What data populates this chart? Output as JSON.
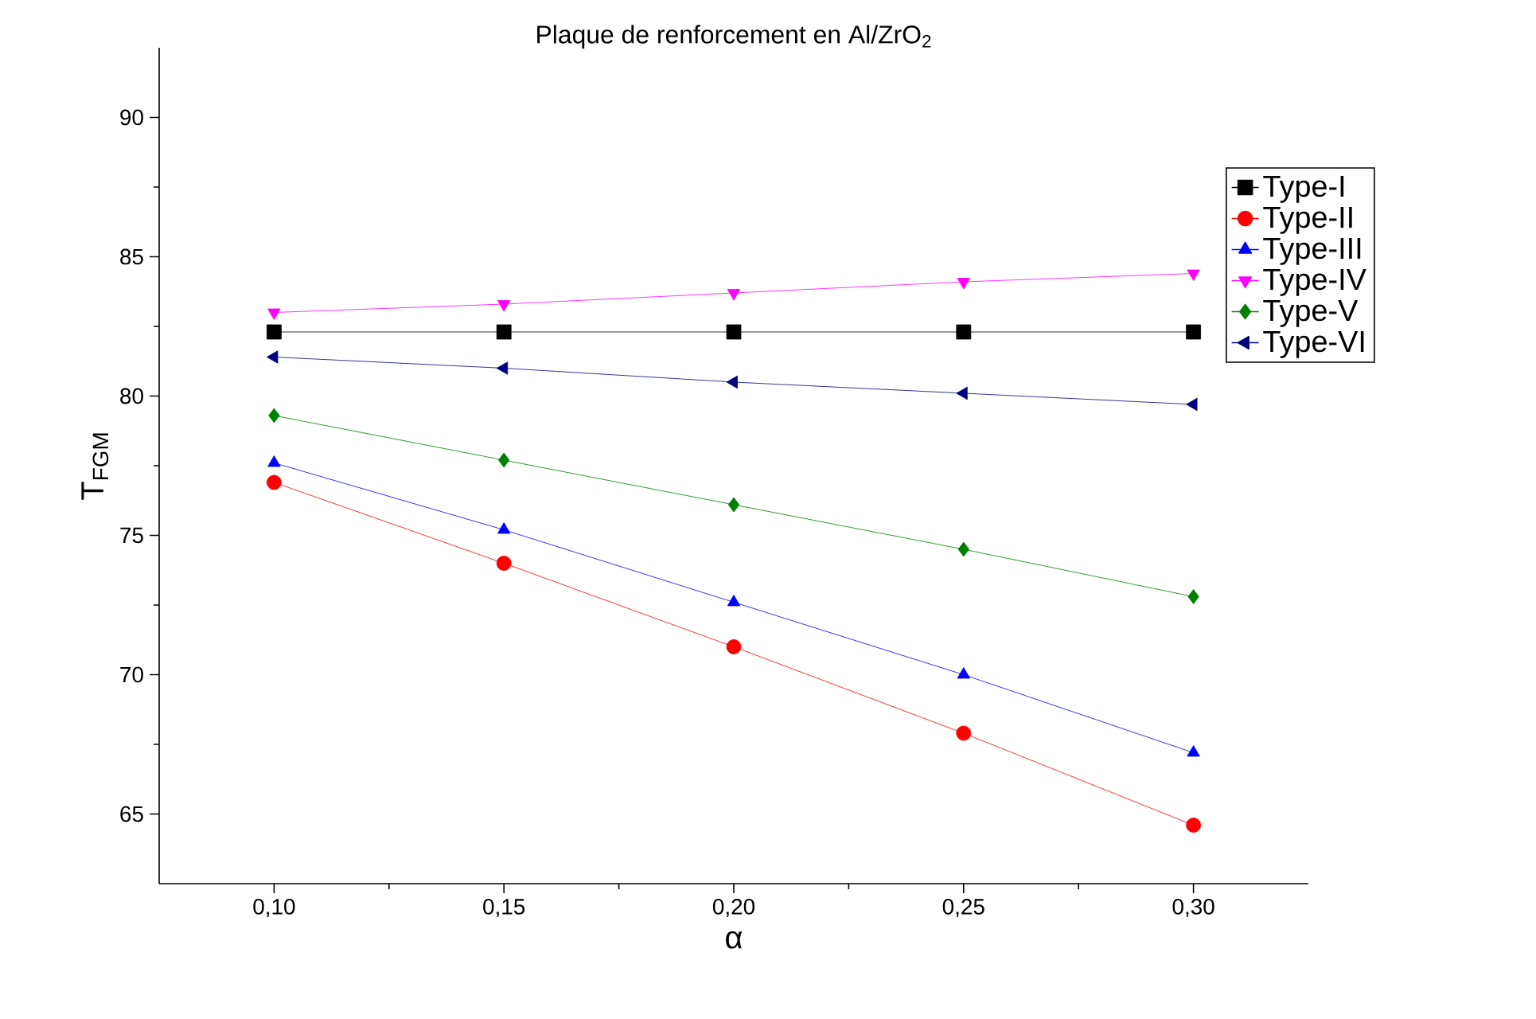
{
  "chart_data": {
    "type": "line",
    "title": "Plaque de renforcement en Al/ZrO$_{2}$",
    "xlabel": "α",
    "ylabel": "T$_{FGM}$",
    "x": [
      0.1,
      0.15,
      0.2,
      0.25,
      0.3
    ],
    "series": [
      {
        "name": "Type-I",
        "color": "#000000",
        "marker": "square",
        "values": [
          82.3,
          82.3,
          82.3,
          82.3,
          82.3
        ]
      },
      {
        "name": "Type-II",
        "color": "#ff0000",
        "marker": "circle",
        "values": [
          76.9,
          74.0,
          71.0,
          67.9,
          64.6
        ]
      },
      {
        "name": "Type-III",
        "color": "#0000ff",
        "marker": "triangle",
        "values": [
          77.6,
          75.2,
          72.6,
          70.0,
          67.2
        ]
      },
      {
        "name": "Type-IV",
        "color": "#ff00ff",
        "marker": "triangle-down",
        "values": [
          83.0,
          83.3,
          83.7,
          84.1,
          84.4
        ]
      },
      {
        "name": "Type-V",
        "color": "#008000",
        "marker": "diamond",
        "values": [
          79.3,
          77.7,
          76.1,
          74.5,
          72.8
        ]
      },
      {
        "name": "Type-VI",
        "color": "#000080",
        "marker": "triangle-left",
        "values": [
          81.4,
          81.0,
          80.5,
          80.1,
          79.7
        ]
      }
    ],
    "xlim": [
      0.075,
      0.325
    ],
    "ylim": [
      62.5,
      92.5
    ],
    "xticks": [
      {
        "value": 0.1,
        "label": "0,10"
      },
      {
        "value": 0.15,
        "label": "0,15"
      },
      {
        "value": 0.2,
        "label": "0,20"
      },
      {
        "value": 0.25,
        "label": "0,25"
      },
      {
        "value": 0.3,
        "label": "0,30"
      }
    ],
    "yticks": [
      65,
      70,
      75,
      80,
      85,
      90
    ],
    "grid": false,
    "legend": "right",
    "line_style": "solid"
  }
}
